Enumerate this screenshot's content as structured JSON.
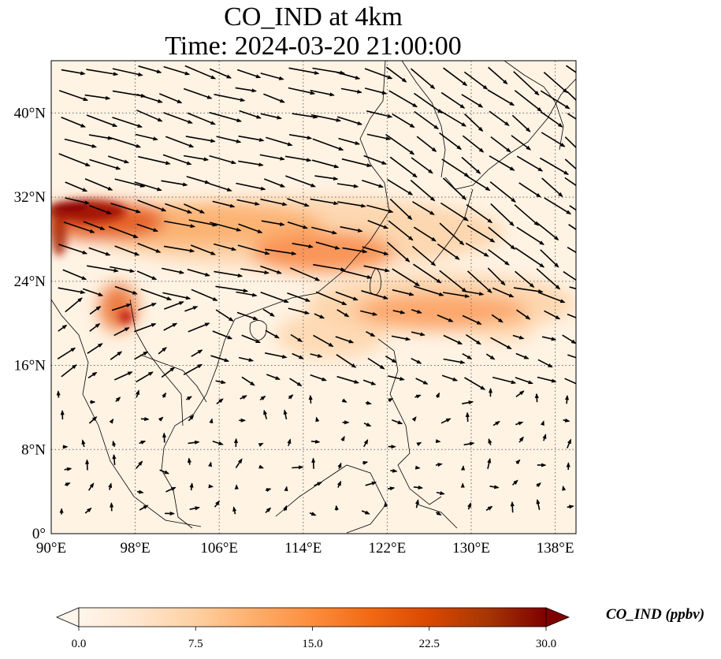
{
  "title_line1": "CO_IND at 4km",
  "title_line2": "Time: 2024-03-20 21:00:00",
  "map": {
    "lon_range": [
      90,
      140
    ],
    "lat_range": [
      0,
      45
    ],
    "lon_ticks": [
      {
        "value": 90,
        "label": "90°E"
      },
      {
        "value": 98,
        "label": "98°E"
      },
      {
        "value": 106,
        "label": "106°E"
      },
      {
        "value": 114,
        "label": "114°E"
      },
      {
        "value": 122,
        "label": "122°E"
      },
      {
        "value": 130,
        "label": "130°E"
      },
      {
        "value": 138,
        "label": "138°E"
      }
    ],
    "lat_ticks": [
      {
        "value": 0,
        "label": "0°"
      },
      {
        "value": 8,
        "label": "8°N"
      },
      {
        "value": 16,
        "label": "16°N"
      },
      {
        "value": 24,
        "label": "24°N"
      },
      {
        "value": 32,
        "label": "32°N"
      },
      {
        "value": 40,
        "label": "40°N"
      }
    ],
    "gridlines": "dotted",
    "field_colors": {
      "low": "#fff5eb",
      "mid": "#f98b4a",
      "high": "#b30000",
      "max": "#7f0000"
    }
  },
  "colorbar": {
    "label": "CO_IND (ppbv)",
    "min": 0,
    "max": 30,
    "extend": "both",
    "ticks": [
      {
        "value": 0,
        "label": "0.0"
      },
      {
        "value": 7.5,
        "label": "7.5"
      },
      {
        "value": 15,
        "label": "15.0"
      },
      {
        "value": 22.5,
        "label": "22.5"
      },
      {
        "value": 30,
        "label": "30.0"
      }
    ],
    "colors": [
      "#fff5eb",
      "#fee6ce",
      "#fdd0a2",
      "#fdae6b",
      "#fd8d3c",
      "#f16913",
      "#d94801",
      "#a63603",
      "#7f0000"
    ]
  }
}
